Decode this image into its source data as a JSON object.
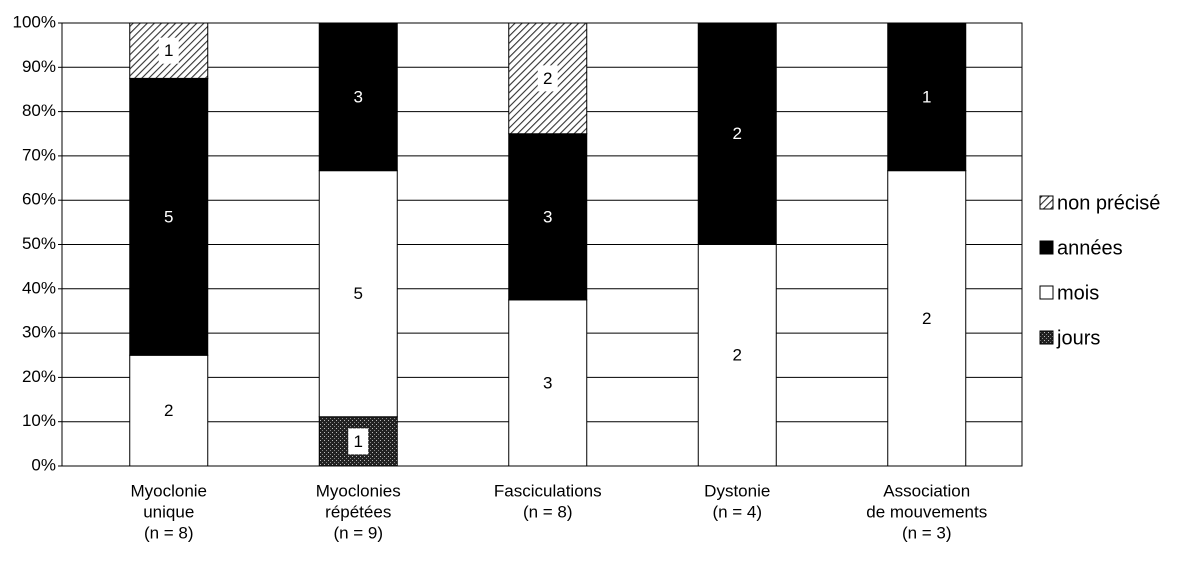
{
  "chart_data": {
    "type": "bar",
    "stacked": "percent",
    "categories": [
      [
        "Myoclonie",
        "unique",
        "(n = 8)"
      ],
      [
        "Myoclonies",
        "répétées",
        "(n = 9)"
      ],
      [
        "Fasciculations",
        "(n = 8)"
      ],
      [
        "Dystonie",
        "(n = 4)"
      ],
      [
        "Association",
        "de mouvements",
        "(n = 3)"
      ]
    ],
    "series": [
      {
        "name": "jours",
        "color": "#333333",
        "pattern": "dots",
        "values": [
          null,
          1,
          null,
          null,
          null
        ]
      },
      {
        "name": "mois",
        "color": "#ffffff",
        "pattern": "solid",
        "values": [
          2,
          5,
          3,
          2,
          2
        ]
      },
      {
        "name": "années",
        "color": "#000000",
        "pattern": "solid",
        "values": [
          5,
          3,
          3,
          2,
          1
        ]
      },
      {
        "name": "non précisé",
        "color": "#555555",
        "pattern": "hatch",
        "values": [
          1,
          null,
          2,
          null,
          null
        ]
      }
    ],
    "ylim": [
      0,
      100
    ],
    "yticks": [
      {
        "value": 0,
        "label": "0%"
      },
      {
        "value": 10,
        "label": "10%"
      },
      {
        "value": 20,
        "label": "20%"
      },
      {
        "value": 30,
        "label": "30%"
      },
      {
        "value": 40,
        "label": "40%"
      },
      {
        "value": 50,
        "label": "50%"
      },
      {
        "value": 60,
        "label": "60%"
      },
      {
        "value": 70,
        "label": "70%"
      },
      {
        "value": 80,
        "label": "80%"
      },
      {
        "value": 90,
        "label": "90%"
      },
      {
        "value": 100,
        "label": "100%"
      }
    ],
    "grid": true,
    "legend": "right"
  }
}
